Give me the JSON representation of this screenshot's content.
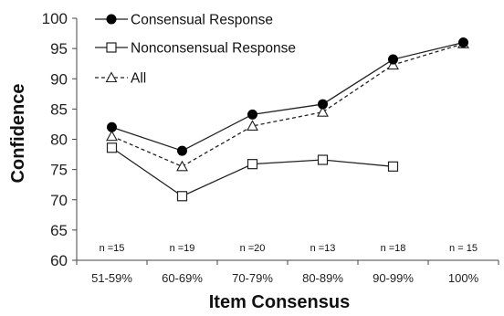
{
  "chart_data": {
    "type": "line",
    "title": "",
    "xlabel": "Item Consensus",
    "ylabel": "Confidence",
    "ylim": [
      60,
      100
    ],
    "yticks": [
      60,
      65,
      70,
      75,
      80,
      85,
      90,
      95,
      100
    ],
    "categories": [
      "51-59%",
      "60-69%",
      "70-79%",
      "80-89%",
      "90-99%",
      "100%"
    ],
    "n_labels": [
      "n =15",
      "n =19",
      "n =20",
      "n =13",
      "n =18",
      "n = 15"
    ],
    "grid": false,
    "legend_position": "top-left",
    "series": [
      {
        "name": "Consensual Response",
        "marker": "filled-circle",
        "line": "solid",
        "values": [
          82.0,
          78.1,
          84.1,
          85.8,
          93.2,
          96.0
        ]
      },
      {
        "name": "Nonconsensual Response",
        "marker": "open-square",
        "line": "solid",
        "values": [
          78.6,
          70.6,
          75.9,
          76.6,
          75.5,
          null
        ]
      },
      {
        "name": "All",
        "marker": "open-triangle",
        "line": "dashed",
        "values": [
          80.5,
          75.5,
          82.2,
          84.5,
          92.3,
          95.8
        ]
      }
    ]
  }
}
